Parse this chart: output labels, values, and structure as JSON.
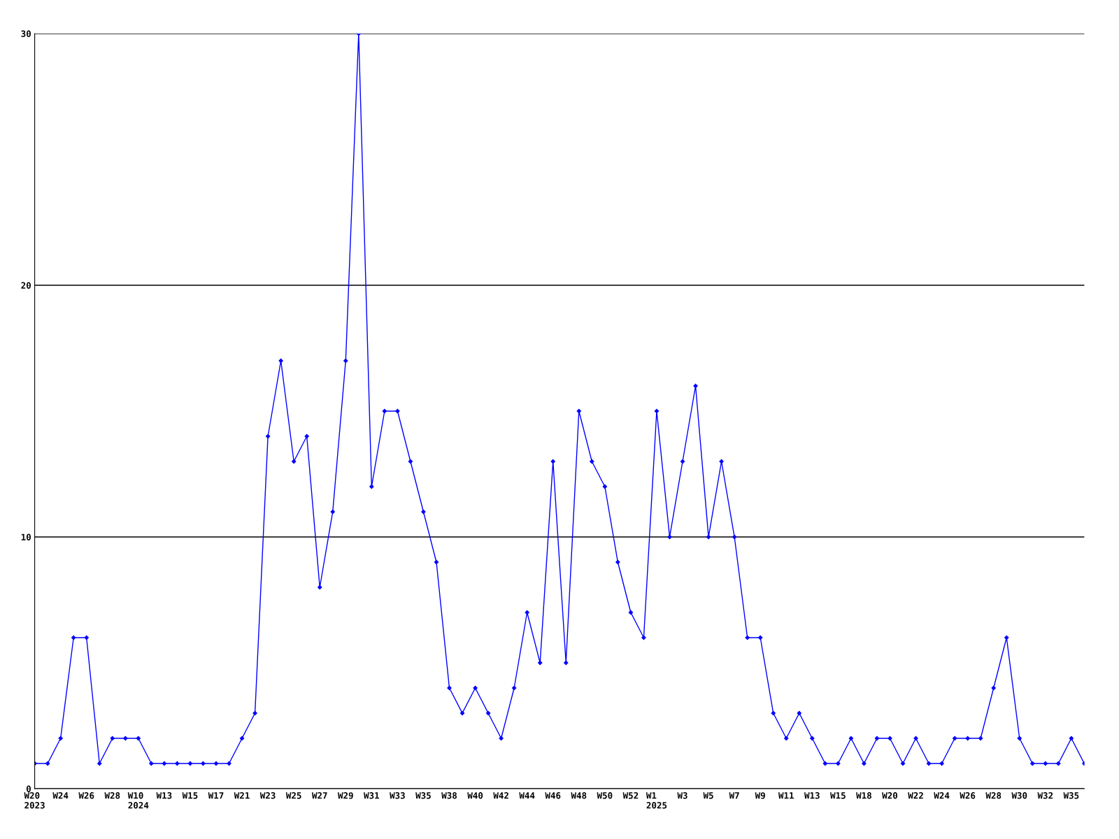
{
  "chart_data": {
    "type": "line",
    "categories": [
      "W20\n2023",
      null,
      "W24",
      null,
      "W26",
      null,
      "W28",
      null,
      "W10\n2024",
      null,
      "W13",
      null,
      "W15",
      null,
      "W17",
      null,
      "W21",
      null,
      "W23",
      null,
      "W25",
      null,
      "W27",
      null,
      "W29",
      null,
      "W31",
      null,
      "W33",
      null,
      "W35",
      null,
      "W38",
      null,
      "W40",
      null,
      "W42",
      null,
      "W44",
      null,
      "W46",
      null,
      "W48",
      null,
      "W50",
      null,
      "W52",
      null,
      "W1\n2025",
      null,
      "W3",
      null,
      "W5",
      null,
      "W7",
      null,
      "W9",
      null,
      "W11",
      null,
      "W13",
      null,
      "W15",
      null,
      "W18",
      null,
      "W20",
      null,
      "W22",
      null,
      "W24",
      null,
      "W26",
      null,
      "W28",
      null,
      "W30",
      null,
      "W32",
      null,
      "W35",
      null
    ],
    "series": [
      {
        "color": "#0000ff",
        "values": [
          1,
          1,
          2,
          6,
          6,
          1,
          2,
          2,
          2,
          1,
          1,
          1,
          1,
          1,
          1,
          1,
          2,
          3,
          14,
          17,
          13,
          14,
          8,
          11,
          17,
          30,
          12,
          15,
          15,
          13,
          11,
          9,
          4,
          3,
          4,
          3,
          2,
          4,
          7,
          5,
          13,
          5,
          15,
          13,
          12,
          9,
          7,
          6,
          15,
          10,
          13,
          16,
          10,
          13,
          10,
          6,
          6,
          3,
          2,
          3,
          2,
          1,
          1,
          2,
          1,
          2,
          2,
          1,
          2,
          1,
          1,
          2,
          2,
          2,
          4,
          6,
          2,
          1,
          1,
          1,
          2,
          1
        ]
      }
    ],
    "ylim": [
      0,
      30
    ],
    "yticks": [
      0,
      10,
      20,
      30
    ],
    "grid": "y",
    "marker": "diamond",
    "line_style": "solid"
  }
}
